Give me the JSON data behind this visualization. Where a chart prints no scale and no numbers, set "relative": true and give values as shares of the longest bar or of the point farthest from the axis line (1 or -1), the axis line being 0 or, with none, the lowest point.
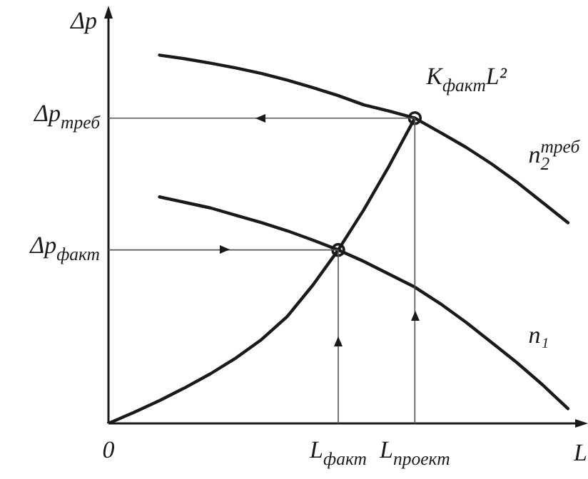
{
  "chart_data": {
    "type": "line",
    "relative": true,
    "xlabel": "L",
    "ylabel": "Δp",
    "categories": [
      "0",
      null,
      null,
      null,
      null,
      null,
      null,
      null,
      null,
      "L$_{факт}$",
      null,
      null,
      "L$_{проект}$",
      null,
      null,
      null,
      null,
      null,
      null
    ],
    "series": [
      {
        "name": "K$_{факт}$L²",
        "color": "#1a1a1a",
        "values": [
          0,
          0.03,
          0.062,
          0.097,
          0.135,
          0.178,
          0.228,
          0.29,
          0.375,
          0.471,
          0.58,
          0.7,
          0.829,
          null,
          null,
          null,
          null,
          null,
          null
        ]
      },
      {
        "name": "n$_{2}$$^{треб}$",
        "color": "#1a1a1a",
        "values": [
          null,
          null,
          1,
          0.99,
          0.978,
          0.965,
          0.95,
          0.932,
          0.912,
          0.89,
          0.865,
          0.848,
          0.829,
          0.79,
          0.75,
          0.705,
          0.655,
          0.6,
          0.545
        ]
      },
      {
        "name": "n₁",
        "color": "#1a1a1a",
        "values": [
          null,
          null,
          0.615,
          0.6,
          0.585,
          0.565,
          0.545,
          0.523,
          0.498,
          0.471,
          0.44,
          0.405,
          0.37,
          0.325,
          0.275,
          0.22,
          0.165,
          0.105,
          0.04
        ]
      },
      {
        "type": "scatter",
        "marker": "circle",
        "color": "#1a1a1a",
        "values": [
          null,
          null,
          null,
          null,
          null,
          null,
          null,
          null,
          null,
          0.471,
          null,
          null,
          0.829,
          null,
          null,
          null,
          null,
          null,
          null
        ]
      }
    ],
    "annotations": [
      "Δp$_{факт}$",
      "Δp$_{треб}$"
    ],
    "marker": "none",
    "line_style": "solid",
    "legend": false
  }
}
